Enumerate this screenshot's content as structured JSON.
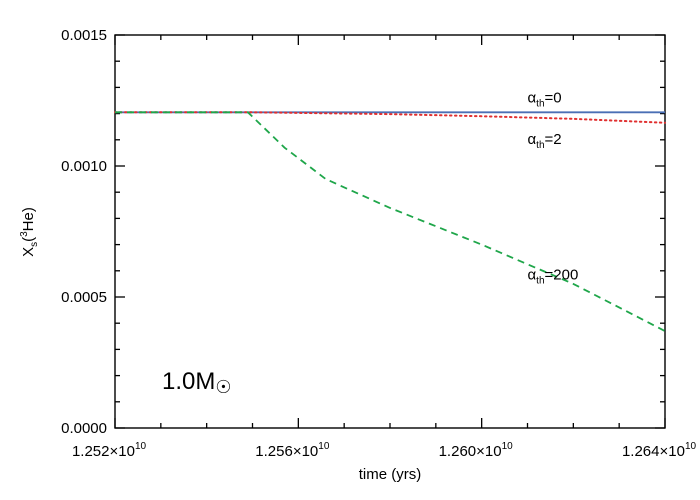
{
  "chart_data": {
    "type": "line",
    "xlabel": "time (yrs)",
    "ylabel": {
      "main": "X",
      "sub": "s",
      "open": "(",
      "sup": "3",
      "element": "He",
      "close": ")"
    },
    "xlim": [
      12520000000.0,
      12640000000.0
    ],
    "ylim": [
      0.0,
      0.0015
    ],
    "x_tick_values": [
      12520000000.0,
      12560000000.0,
      12600000000.0,
      12640000000.0
    ],
    "x_tick_labels": [
      {
        "mant": "1.252",
        "times": "×10",
        "exp": "10"
      },
      {
        "mant": "1.256",
        "times": "×10",
        "exp": "10"
      },
      {
        "mant": "1.260",
        "times": "×10",
        "exp": "10"
      },
      {
        "mant": "1.264",
        "times": "×10",
        "exp": "10"
      }
    ],
    "y_tick_values": [
      0.0,
      0.0005,
      0.001,
      0.0015
    ],
    "y_tick_labels": [
      "0.0000",
      "0.0005",
      "0.0010",
      "0.0015"
    ],
    "series": [
      {
        "label": {
          "alpha": "α",
          "sub": "th",
          "rest": "=0"
        },
        "label_at": [
          12610000000.0,
          0.001262
        ],
        "color": "#4a6fb5",
        "dash": "solid",
        "x": [
          12520000000.0,
          12640000000.0
        ],
        "y": [
          0.001205,
          0.001205
        ]
      },
      {
        "label": {
          "alpha": "α",
          "sub": "th",
          "rest": "=2"
        },
        "label_at": [
          12610000000.0,
          0.001103
        ],
        "color": "#e03030",
        "dash": "dotted",
        "x": [
          12520000000.0,
          12550000000.0,
          12580000000.0,
          12600000000.0,
          12620000000.0,
          12640000000.0
        ],
        "y": [
          0.001205,
          0.001205,
          0.001198,
          0.00119,
          0.00118,
          0.001165
        ]
      },
      {
        "label": {
          "alpha": "α",
          "sub": "th",
          "rest": "=200"
        },
        "label_at": [
          12610000000.0,
          0.000585
        ],
        "color": "#1fa64a",
        "dash": "dashed",
        "x": [
          12520000000.0,
          12549000000.0,
          12557000000.0,
          12566000000.0,
          12580000000.0,
          12600000000.0,
          12620000000.0,
          12640000000.0
        ],
        "y": [
          0.001205,
          0.001205,
          0.00107,
          0.00095,
          0.00084,
          0.0007,
          0.00055,
          0.00037
        ]
      }
    ],
    "mass_annotation": {
      "text": "1.0M",
      "symbol": "☉"
    }
  }
}
